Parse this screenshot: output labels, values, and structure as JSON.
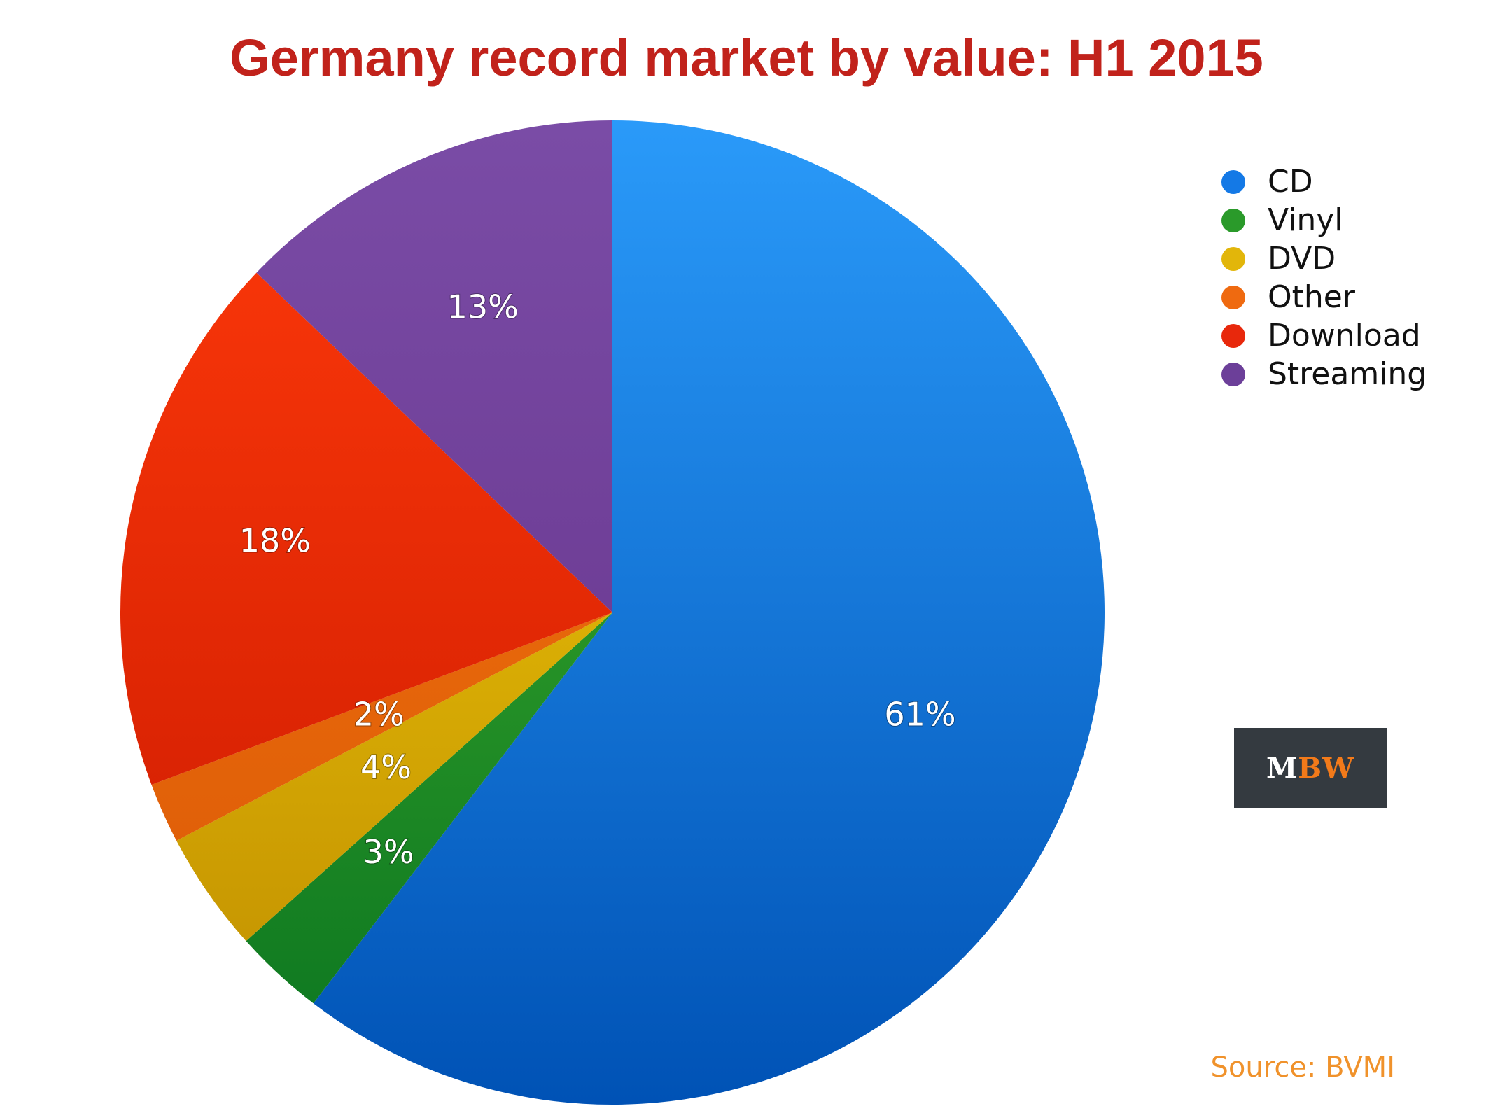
{
  "colors": {
    "title": "#c1221b",
    "logo_bg": "#343a40",
    "logo_m": "#ffffff",
    "logo_bw": "#f27a1a",
    "source": "#f0922b"
  },
  "chart_data": {
    "type": "pie",
    "title": "Germany record market by value: H1 2015",
    "start_angle": "12 o'clock",
    "direction": "clockwise",
    "slices": [
      {
        "label": "CD",
        "value": 61,
        "display": "61%",
        "color_top": "#2a9af9",
        "color_bottom": "#0052b5"
      },
      {
        "label": "Vinyl",
        "value": 3,
        "display": "3%",
        "color_top": "#46b42e",
        "color_bottom": "#0a7420"
      },
      {
        "label": "DVD",
        "value": 4,
        "display": "4%",
        "color_top": "#f7d20a",
        "color_bottom": "#be8c00"
      },
      {
        "label": "Other",
        "value": 2,
        "display": "2%",
        "color_top": "#f5760d",
        "color_bottom": "#d95807"
      },
      {
        "label": "Download",
        "value": 18,
        "display": "18%",
        "color_top": "#ff3a0a",
        "color_bottom": "#c81800"
      },
      {
        "label": "Streaming",
        "value": 13,
        "display": "13%",
        "color_top": "#7a4ca6",
        "color_bottom": "#633087"
      }
    ],
    "legend": {
      "position": "top-right",
      "entries": [
        "CD",
        "Vinyl",
        "DVD",
        "Other",
        "Download",
        "Streaming"
      ],
      "dot_colors": [
        "#1479e6",
        "#2a9a2a",
        "#e2b60a",
        "#ef6a10",
        "#e8280c",
        "#6c3f99"
      ]
    }
  },
  "logo": {
    "m": "M",
    "bw": "BW"
  },
  "source": "Source: BVMI"
}
